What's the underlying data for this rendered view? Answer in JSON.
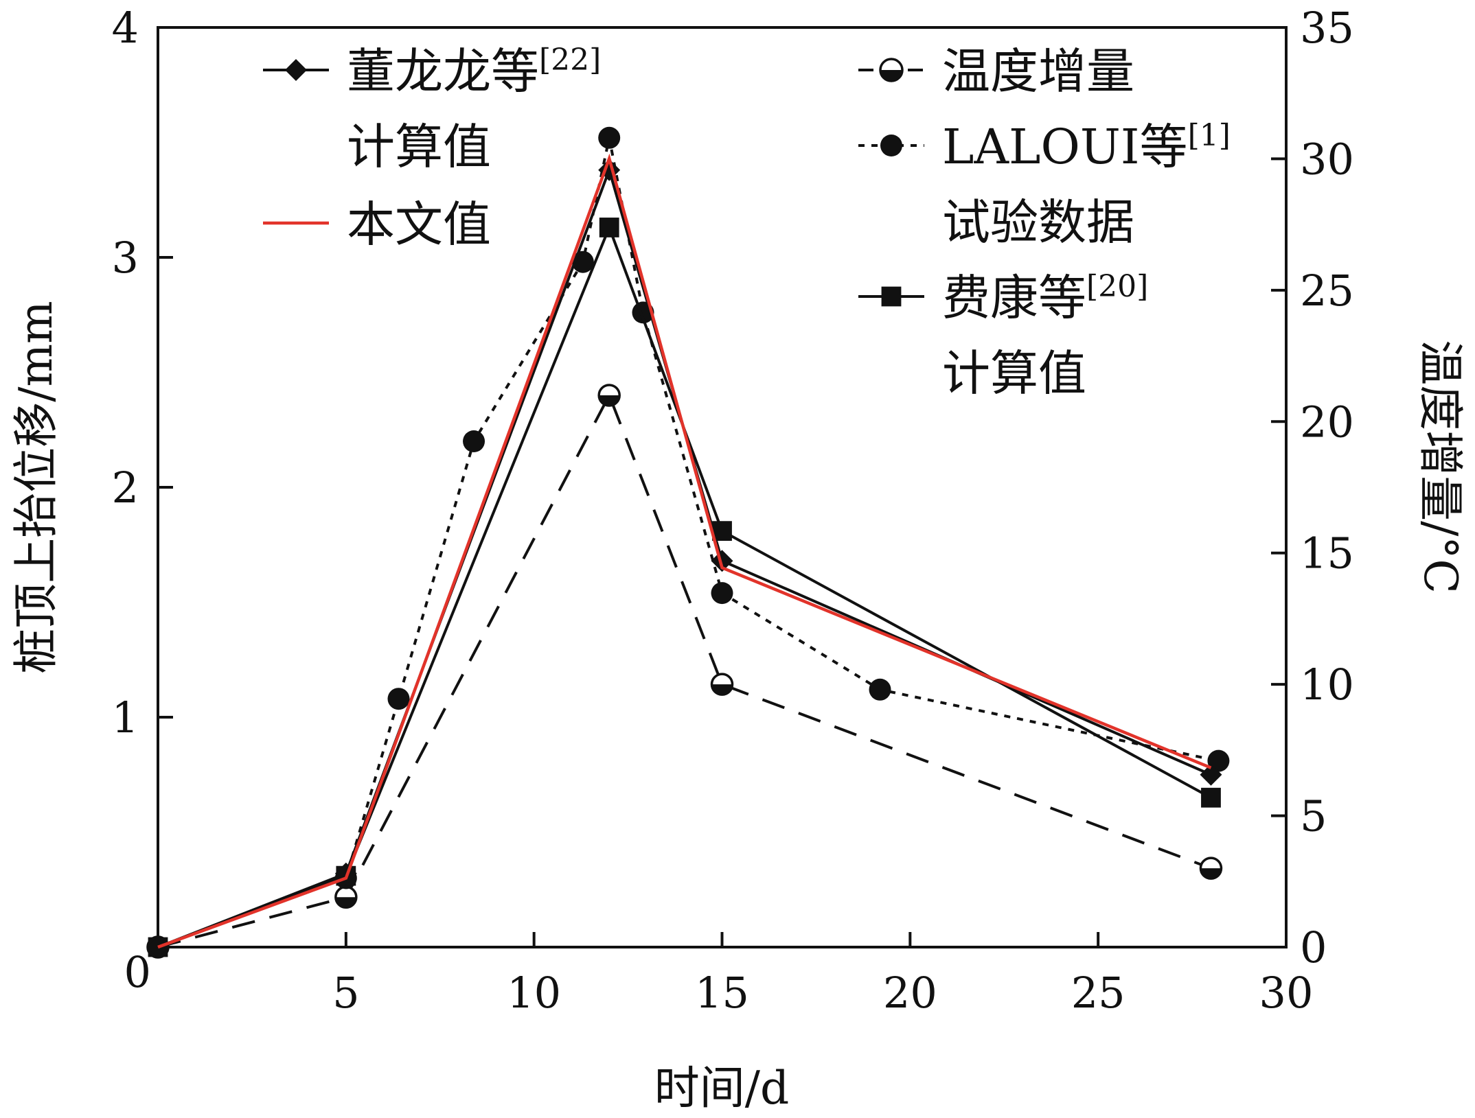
{
  "chart_data": {
    "type": "line",
    "xlabel": "时间/d",
    "ylabel": "桩顶上抬位移/mm",
    "y2label": "温度增量/°C",
    "xlim": [
      0,
      30
    ],
    "ylim": [
      0,
      4
    ],
    "y2lim": [
      0,
      35
    ],
    "xticks": [
      "5",
      "10",
      "15",
      "20",
      "25",
      "30"
    ],
    "yticks": [
      "0",
      "1",
      "2",
      "3",
      "4"
    ],
    "y2ticks": [
      "0",
      "5",
      "10",
      "15",
      "20",
      "25",
      "30",
      "35"
    ],
    "grid": false,
    "series": [
      {
        "name": "董龙龙等",
        "name_sup": "[22]",
        "name_line2": "计算值",
        "axis": "left",
        "marker": "diamond",
        "line": "solid",
        "color": "#111111",
        "x": [
          0,
          5,
          12,
          15,
          28
        ],
        "y": [
          0,
          0.32,
          3.38,
          1.68,
          0.75
        ]
      },
      {
        "name": "本文值",
        "name_sup": "",
        "name_line2": "",
        "axis": "left",
        "marker": "none",
        "line": "solid",
        "color": "#e2332a",
        "x": [
          0,
          5,
          12,
          15,
          28
        ],
        "y": [
          0,
          0.3,
          3.43,
          1.65,
          0.78
        ]
      },
      {
        "name": "温度增量",
        "name_sup": "",
        "name_line2": "",
        "axis": "right",
        "marker": "half-circle",
        "line": "dashed",
        "color": "#111111",
        "x": [
          0,
          5,
          12,
          15,
          28
        ],
        "y": [
          0,
          1.9,
          21,
          10,
          3
        ]
      },
      {
        "name": "LALOUI等",
        "name_sup": "[1]",
        "name_line2": "试验数据",
        "axis": "left",
        "marker": "circle",
        "line": "dotted",
        "color": "#111111",
        "x": [
          0,
          5,
          6.4,
          8.4,
          11.3,
          12,
          12.9,
          15,
          19.2,
          28.2
        ],
        "y": [
          0,
          0.3,
          1.08,
          2.2,
          2.98,
          3.52,
          2.76,
          1.54,
          1.12,
          0.81
        ]
      },
      {
        "name": "费康等",
        "name_sup": "[20]",
        "name_line2": "计算值",
        "axis": "left",
        "marker": "square",
        "line": "solid",
        "color": "#111111",
        "x": [
          0,
          5,
          12,
          15,
          28
        ],
        "y": [
          0,
          0.31,
          3.13,
          1.81,
          0.65
        ]
      }
    ]
  }
}
